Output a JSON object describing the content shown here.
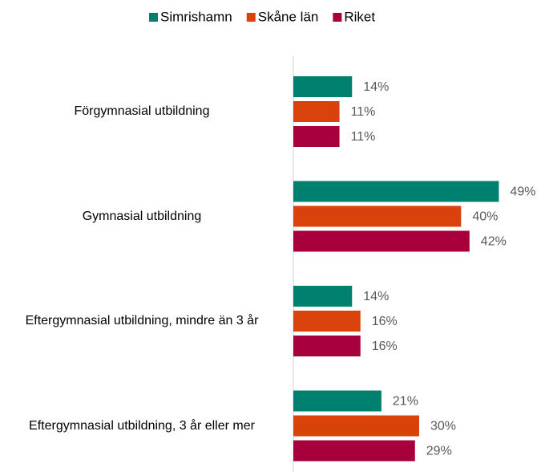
{
  "chart_data": {
    "type": "hbar",
    "categories": [
      "Förgymnasial utbildning",
      "Gymnasial utbildning",
      "Eftergymnasial utbildning, mindre än 3 år",
      "Eftergymnasial utbildning, 3 år eller mer"
    ],
    "series": [
      {
        "name": "Simrishamn",
        "color": "#00806e",
        "values": [
          14,
          49,
          14,
          21
        ],
        "value_labels": [
          "14%",
          "49%",
          "14%",
          "21%"
        ]
      },
      {
        "name": "Skåne län",
        "color": "#d9420b",
        "values": [
          11,
          40,
          16,
          30
        ],
        "value_labels": [
          "11%",
          "40%",
          "16%",
          "30%"
        ]
      },
      {
        "name": "Riket",
        "color": "#a8003c",
        "values": [
          11,
          42,
          16,
          29
        ],
        "value_labels": [
          "11%",
          "42%",
          "16%",
          "29%"
        ]
      }
    ],
    "xlim": [
      0,
      60
    ],
    "legend": "top"
  }
}
